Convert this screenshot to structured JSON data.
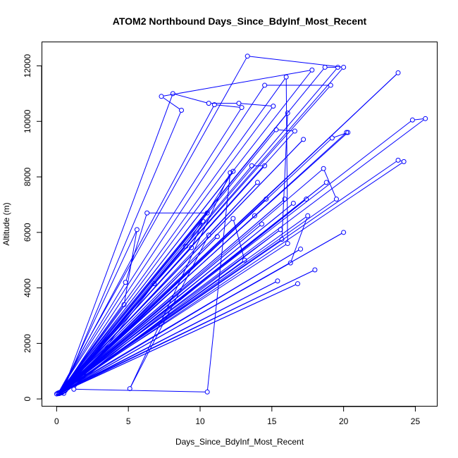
{
  "chart_data": {
    "type": "line",
    "title": "ATOM2 Northbound Days_Since_BdyInf_Most_Recent",
    "xlabel": "Days_Since_BdyInf_Most_Recent",
    "ylabel": "Altitude (m)",
    "xlim": [
      -1,
      26.5
    ],
    "ylim": [
      -250,
      12850
    ],
    "xticks": [
      0,
      5,
      10,
      15,
      20,
      25
    ],
    "yticks": [
      0,
      2000,
      4000,
      6000,
      8000,
      10000,
      12000
    ],
    "series_color": "#0000ff",
    "points": [
      [
        0.1,
        200
      ],
      [
        13.3,
        12350
      ],
      [
        20.0,
        11950
      ],
      [
        0.2,
        230
      ],
      [
        16.0,
        11600
      ],
      [
        16.1,
        5600
      ],
      [
        0.1,
        210
      ],
      [
        18.7,
        11950
      ],
      [
        19.6,
        11950
      ],
      [
        0.3,
        250
      ],
      [
        14.5,
        11300
      ],
      [
        19.1,
        11300
      ],
      [
        0.0,
        180
      ],
      [
        23.8,
        11750
      ],
      [
        0.2,
        220
      ],
      [
        17.8,
        11850
      ],
      [
        7.3,
        10900
      ],
      [
        8.7,
        10400
      ],
      [
        0.4,
        240
      ],
      [
        8.1,
        11000
      ],
      [
        10.6,
        10650
      ],
      [
        12.7,
        10650
      ],
      [
        15.1,
        10550
      ],
      [
        0.2,
        210
      ],
      [
        11.0,
        10600
      ],
      [
        12.9,
        10500
      ],
      [
        0.1,
        190
      ],
      [
        24.8,
        10050
      ],
      [
        25.7,
        10100
      ],
      [
        0.3,
        250
      ],
      [
        15.3,
        9700
      ],
      [
        16.6,
        9650
      ],
      [
        0.2,
        200
      ],
      [
        19.2,
        9400
      ],
      [
        20.3,
        9600
      ],
      [
        0.1,
        210
      ],
      [
        17.2,
        9350
      ],
      [
        0.2,
        230
      ],
      [
        12.3,
        8200
      ],
      [
        9.0,
        5500
      ],
      [
        0.4,
        260
      ],
      [
        13.6,
        8400
      ],
      [
        14.5,
        8400
      ],
      [
        0.2,
        200
      ],
      [
        23.8,
        8600
      ],
      [
        24.2,
        8550
      ],
      [
        0.3,
        230
      ],
      [
        18.6,
        8300
      ],
      [
        19.5,
        7200
      ],
      [
        0.2,
        210
      ],
      [
        16.1,
        10300
      ],
      [
        15.7,
        5750
      ],
      [
        0.1,
        190
      ],
      [
        4.8,
        4200
      ],
      [
        6.3,
        6700
      ],
      [
        10.5,
        6700
      ],
      [
        0.3,
        240
      ],
      [
        5.6,
        6100
      ],
      [
        4.7,
        3400
      ],
      [
        0.2,
        220
      ],
      [
        12.3,
        6500
      ],
      [
        13.1,
        5000
      ],
      [
        0.4,
        260
      ],
      [
        10.2,
        6400
      ],
      [
        9.4,
        5450
      ],
      [
        0.1,
        200
      ],
      [
        15.4,
        4250
      ],
      [
        0.5,
        280
      ],
      [
        20.0,
        6000
      ],
      [
        0.3,
        220
      ],
      [
        17.5,
        6600
      ],
      [
        16.3,
        4900
      ],
      [
        0.2,
        200
      ],
      [
        17.0,
        5400
      ],
      [
        0.1,
        210
      ],
      [
        18.0,
        4650
      ],
      [
        0.3,
        230
      ],
      [
        16.8,
        4150
      ],
      [
        0.2,
        200
      ],
      [
        16.5,
        7050
      ],
      [
        0.1,
        190
      ],
      [
        15.9,
        7200
      ],
      [
        0.2,
        220
      ],
      [
        14.6,
        7200
      ],
      [
        0.4,
        250
      ],
      [
        11.2,
        5850
      ],
      [
        0.6,
        300
      ],
      [
        6.8,
        4150
      ],
      [
        1.2,
        350
      ],
      [
        10.5,
        250
      ],
      [
        12.1,
        8150
      ],
      [
        5.1,
        370
      ],
      [
        10.6,
        5900
      ],
      [
        14.0,
        7800
      ],
      [
        0.3,
        230
      ],
      [
        13.8,
        6600
      ],
      [
        0.2,
        200
      ],
      [
        14.3,
        6300
      ],
      [
        0.1,
        190
      ],
      [
        15.6,
        6100
      ],
      [
        0.5,
        200
      ],
      [
        17.4,
        7200
      ],
      [
        0.3,
        220
      ],
      [
        18.8,
        7800
      ],
      [
        0.2,
        210
      ],
      [
        20.2,
        9600
      ]
    ]
  }
}
